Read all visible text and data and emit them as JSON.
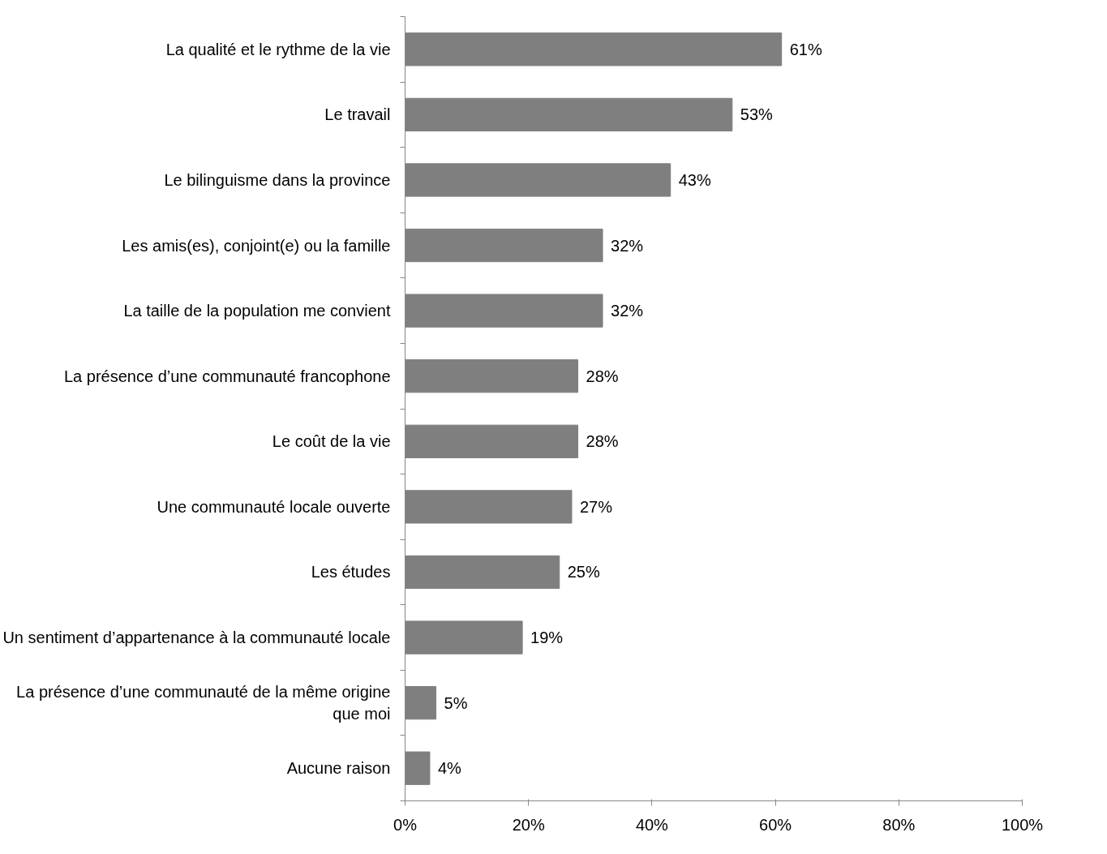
{
  "chart_data": {
    "type": "bar",
    "orientation": "horizontal",
    "categories": [
      "La qualité et le rythme de la vie",
      "Le travail",
      "Le bilinguisme dans la province",
      "Les amis(es), conjoint(e) ou la famille",
      "La taille de la population me convient",
      "La présence d’une communauté francophone",
      "Le coût de la vie",
      "Une communauté locale ouverte",
      "Les études",
      "Un sentiment d’appartenance à la communauté locale",
      "La présence d’une communauté de la même origine que moi",
      "Aucune raison"
    ],
    "values": [
      61,
      53,
      43,
      32,
      32,
      28,
      28,
      27,
      25,
      19,
      5,
      4
    ],
    "value_labels": [
      "61%",
      "53%",
      "43%",
      "32%",
      "32%",
      "28%",
      "28%",
      "27%",
      "25%",
      "19%",
      "5%",
      "4%"
    ],
    "color": "#7f7f7f",
    "xlim": [
      0,
      100
    ],
    "xticks": [
      {
        "value": 0,
        "label": "0%"
      },
      {
        "value": 20,
        "label": "20%"
      },
      {
        "value": 40,
        "label": "40%"
      },
      {
        "value": 60,
        "label": "60%"
      },
      {
        "value": 80,
        "label": "80%"
      },
      {
        "value": 100,
        "label": "100%"
      }
    ],
    "grid": false
  }
}
